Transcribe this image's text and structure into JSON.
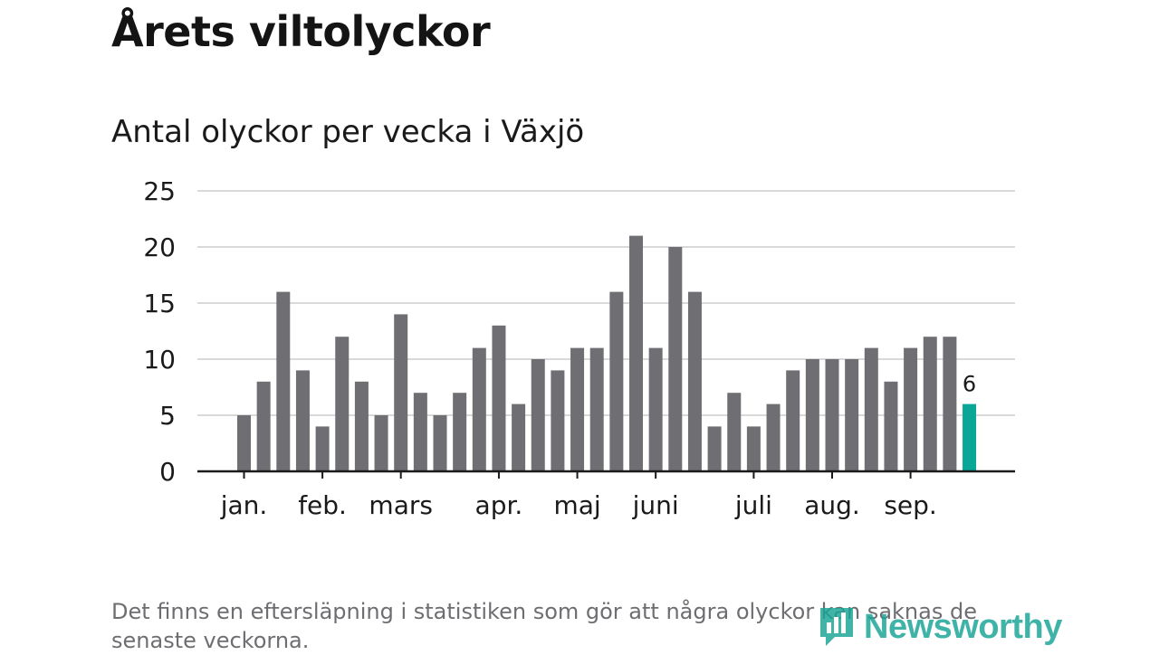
{
  "colors": {
    "bar": "#6f6e73",
    "highlight": "#0aa698",
    "gridline": "#d9d9d9",
    "axis": "#1a1a1a",
    "brand": "#16a394"
  },
  "footnote": "Det finns en eftersläpning i statistiken som gör att några olyckor kan saknas de senaste veckorna.",
  "brand": {
    "name": "Newsworthy",
    "icon": "newsworthy-logo-icon"
  },
  "chart_data": {
    "type": "bar",
    "title": "Årets viltolyckor",
    "subtitle": "Antal olyckor per vecka i Växjö",
    "xlabel": "",
    "ylabel": "",
    "ylim": [
      0,
      25
    ],
    "yticks": [
      0,
      5,
      10,
      15,
      20,
      25
    ],
    "grid": true,
    "month_labels": [
      {
        "label": "jan.",
        "week": 1
      },
      {
        "label": "feb.",
        "week": 5
      },
      {
        "label": "mars",
        "week": 9
      },
      {
        "label": "apr.",
        "week": 14
      },
      {
        "label": "maj",
        "week": 18
      },
      {
        "label": "juni",
        "week": 22
      },
      {
        "label": "juli",
        "week": 27
      },
      {
        "label": "aug.",
        "week": 31
      },
      {
        "label": "sep.",
        "week": 35
      }
    ],
    "weeks": [
      1,
      2,
      3,
      4,
      5,
      6,
      7,
      8,
      9,
      10,
      11,
      12,
      13,
      14,
      15,
      16,
      17,
      18,
      19,
      20,
      21,
      22,
      23,
      24,
      25,
      26,
      27,
      28,
      29,
      30,
      31,
      32,
      33,
      34,
      35,
      36,
      37,
      38
    ],
    "values": [
      5,
      8,
      16,
      9,
      4,
      12,
      8,
      5,
      14,
      7,
      5,
      7,
      11,
      13,
      6,
      10,
      9,
      11,
      11,
      16,
      21,
      11,
      20,
      16,
      4,
      7,
      4,
      6,
      9,
      10,
      10,
      10,
      11,
      8,
      11,
      12,
      12,
      6
    ],
    "highlight_last": true,
    "data_labels": [
      {
        "week": 38,
        "label": "6"
      }
    ]
  }
}
